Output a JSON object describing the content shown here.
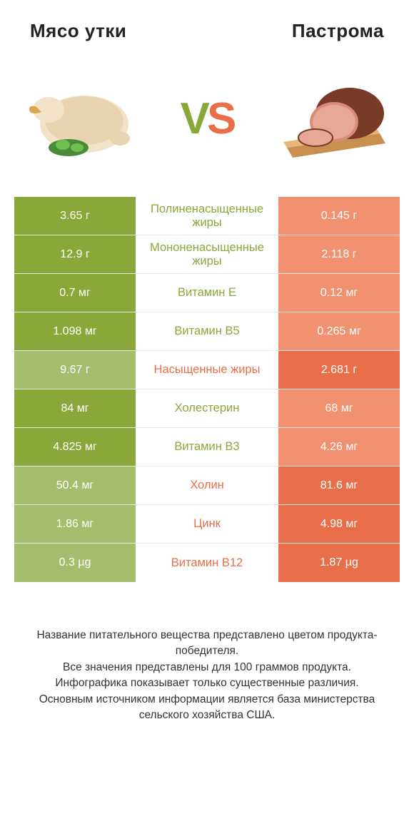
{
  "header": {
    "left_title": "Мясо утки",
    "right_title": "Пастрома"
  },
  "vs": {
    "v": "V",
    "s": "S"
  },
  "colors": {
    "green_strong": "#8aa83a",
    "green_muted": "#a7bd6e",
    "orange_strong": "#e86f4a",
    "orange_muted": "#f2916f",
    "text": "#333333",
    "bg": "#ffffff",
    "row_border": "#e6e6e6"
  },
  "rows": [
    {
      "winner": "left",
      "left": "3.65 г",
      "label": "Полиненасыщенные жиры",
      "right": "0.145 г"
    },
    {
      "winner": "left",
      "left": "12.9 г",
      "label": "Мононенасыщенные жиры",
      "right": "2.118 г"
    },
    {
      "winner": "left",
      "left": "0.7 мг",
      "label": "Витамин E",
      "right": "0.12 мг"
    },
    {
      "winner": "left",
      "left": "1.098 мг",
      "label": "Витамин B5",
      "right": "0.265 мг"
    },
    {
      "winner": "right",
      "left": "9.67 г",
      "label": "Насыщенные жиры",
      "right": "2.681 г"
    },
    {
      "winner": "left",
      "left": "84 мг",
      "label": "Холестерин",
      "right": "68 мг"
    },
    {
      "winner": "left",
      "left": "4.825 мг",
      "label": "Витамин B3",
      "right": "4.26 мг"
    },
    {
      "winner": "right",
      "left": "50.4 мг",
      "label": "Холин",
      "right": "81.6 мг"
    },
    {
      "winner": "right",
      "left": "1.86 мг",
      "label": "Цинк",
      "right": "4.98 мг"
    },
    {
      "winner": "right",
      "left": "0.3 µg",
      "label": "Витамин B12",
      "right": "1.87 µg"
    }
  ],
  "footer": {
    "line1": "Название питательного вещества представлено цветом продукта-победителя.",
    "line2": "Все значения представлены для 100 граммов продукта.",
    "line3": "Инфографика показывает только существенные различия.",
    "line4": "Основным источником информации является база министерства сельского хозяйства США."
  }
}
